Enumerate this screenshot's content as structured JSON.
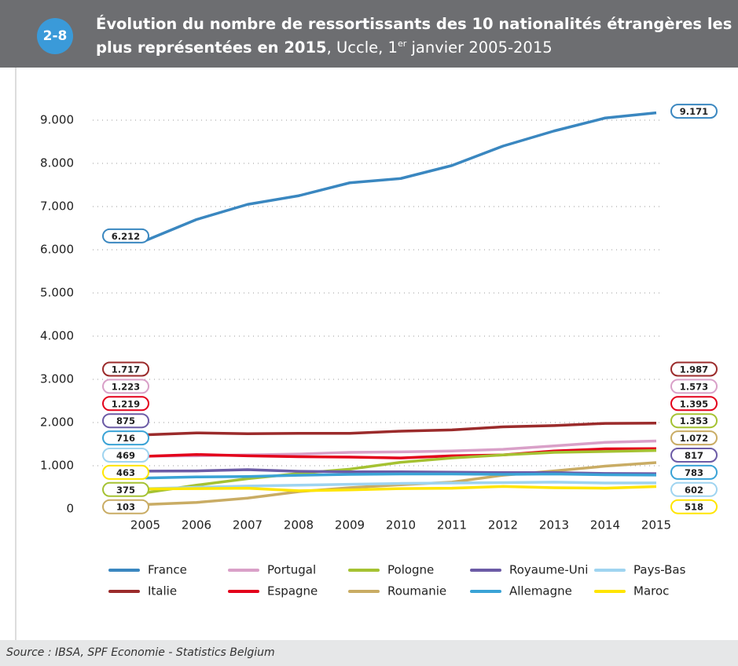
{
  "chart_data": {
    "type": "line",
    "badge": "2-8",
    "title": "Évolution du nombre de ressortissants des 10 nationalités étrangères les plus représentées en 2015",
    "title_suffix": ", Uccle, 1",
    "title_sup": "er",
    "title_end": " janvier 2005-2015",
    "source": "Source : IBSA, SPF Economie - Statistics Belgium",
    "categories": [
      "2005",
      "2006",
      "2007",
      "2008",
      "2009",
      "2010",
      "2011",
      "2012",
      "2013",
      "2014",
      "2015"
    ],
    "ylim": [
      0,
      9000
    ],
    "yticks": [
      0,
      {
        "value": 1000,
        "label": "1.000"
      },
      {
        "value": 2000,
        "label": "2.000"
      },
      {
        "value": 3000,
        "label": "3.000"
      },
      {
        "value": 4000,
        "label": "4.000"
      },
      {
        "value": 5000,
        "label": "5.000"
      },
      {
        "value": 6000,
        "label": "6.000"
      },
      {
        "value": 7000,
        "label": "7.000"
      },
      {
        "value": 8000,
        "label": "8.000"
      },
      {
        "value": 9000,
        "label": "9.000"
      }
    ],
    "grid": true,
    "series": [
      {
        "name": "France",
        "color": "#3a87c0",
        "values": [
          6212,
          6700,
          7050,
          7250,
          7550,
          7650,
          7950,
          8400,
          8750,
          9050,
          9171
        ],
        "value_labels": [
          "6.212",
          null,
          null,
          null,
          null,
          null,
          null,
          null,
          null,
          null,
          "9.171"
        ]
      },
      {
        "name": "Italie",
        "color": "#9b2b2b",
        "values": [
          1717,
          1760,
          1740,
          1750,
          1750,
          1800,
          1830,
          1900,
          1930,
          1980,
          1987
        ],
        "value_labels": [
          "1.717",
          null,
          null,
          null,
          null,
          null,
          null,
          null,
          null,
          null,
          "1.987"
        ]
      },
      {
        "name": "Portugal",
        "color": "#d9a0c8",
        "values": [
          1223,
          1230,
          1250,
          1270,
          1310,
          1320,
          1340,
          1380,
          1460,
          1540,
          1573
        ],
        "value_labels": [
          "1.223",
          null,
          null,
          null,
          null,
          null,
          null,
          null,
          null,
          null,
          "1.573"
        ]
      },
      {
        "name": "Espagne",
        "color": "#e3001b",
        "values": [
          1219,
          1260,
          1230,
          1210,
          1200,
          1180,
          1230,
          1250,
          1340,
          1390,
          1395
        ],
        "value_labels": [
          "1.219",
          null,
          null,
          null,
          null,
          null,
          null,
          null,
          null,
          null,
          "1.395"
        ]
      },
      {
        "name": "Pologne",
        "color": "#a5c232",
        "values": [
          375,
          550,
          700,
          820,
          920,
          1080,
          1180,
          1250,
          1310,
          1330,
          1353
        ],
        "value_labels": [
          "375",
          null,
          null,
          null,
          null,
          null,
          null,
          null,
          null,
          null,
          "1.353"
        ]
      },
      {
        "name": "Roumanie",
        "color": "#c9ac64",
        "values": [
          103,
          150,
          250,
          400,
          490,
          560,
          620,
          780,
          880,
          990,
          1072
        ],
        "value_labels": [
          "103",
          null,
          null,
          null,
          null,
          null,
          null,
          null,
          null,
          null,
          "1.072"
        ]
      },
      {
        "name": "Royaume-Uni",
        "color": "#6c5ba6",
        "values": [
          875,
          880,
          910,
          870,
          860,
          860,
          850,
          840,
          840,
          820,
          817
        ],
        "value_labels": [
          "875",
          null,
          null,
          null,
          null,
          null,
          null,
          null,
          null,
          null,
          "817"
        ]
      },
      {
        "name": "Allemagne",
        "color": "#3aa3d6",
        "values": [
          716,
          740,
          750,
          780,
          800,
          810,
          810,
          800,
          810,
          790,
          783
        ],
        "value_labels": [
          "716",
          null,
          null,
          null,
          null,
          null,
          null,
          null,
          null,
          null,
          "783"
        ]
      },
      {
        "name": "Pays-Bas",
        "color": "#9fd4f0",
        "values": [
          469,
          500,
          530,
          550,
          570,
          590,
          600,
          610,
          620,
          600,
          602
        ],
        "value_labels": [
          "469",
          null,
          null,
          null,
          null,
          null,
          null,
          null,
          null,
          null,
          "602"
        ]
      },
      {
        "name": "Maroc",
        "color": "#ffe500",
        "values": [
          463,
          470,
          480,
          420,
          440,
          470,
          480,
          520,
          490,
          480,
          518
        ],
        "value_labels": [
          "463",
          null,
          null,
          null,
          null,
          null,
          null,
          null,
          null,
          null,
          "518"
        ]
      }
    ]
  }
}
